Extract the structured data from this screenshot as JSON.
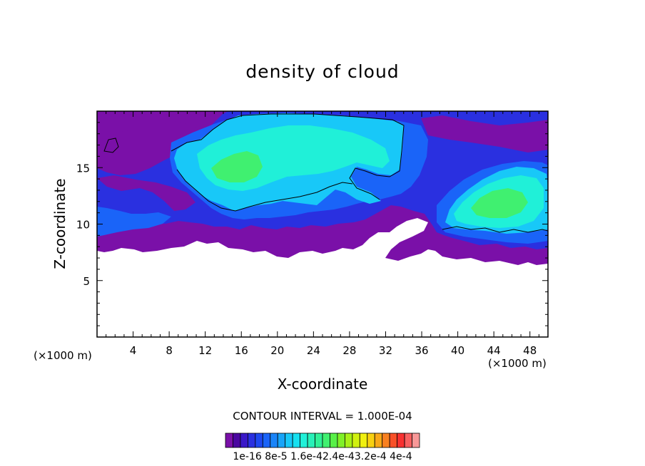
{
  "chart_data": {
    "type": "heatmap",
    "title": "density of cloud",
    "xlabel": "X-coordinate",
    "ylabel": "Z-coordinate",
    "x_unit_label": "(×1000 m)",
    "xlim": [
      0,
      50
    ],
    "ylim": [
      0,
      20
    ],
    "x_ticks": [
      4,
      8,
      12,
      16,
      20,
      24,
      28,
      32,
      36,
      40,
      44,
      48
    ],
    "y_ticks": [
      5,
      10,
      15
    ],
    "contour_interval_text": "CONTOUR INTERVAL = 1.000E-04",
    "colorbar_labels": "1e-16 8e-5 1.6e-42.4e-43.2e-4 4e-4",
    "colorbar_colors": [
      "#7a10a8",
      "#4a06a0",
      "#3a18c8",
      "#2a30e0",
      "#1e48f0",
      "#1a64f8",
      "#1a84f8",
      "#18a4f8",
      "#18c8f8",
      "#16e0f0",
      "#20f0d8",
      "#28f0b8",
      "#30f098",
      "#40f070",
      "#58f048",
      "#80f028",
      "#a8f018",
      "#d0f010",
      "#f0f010",
      "#f8d010",
      "#f8a818",
      "#f88020",
      "#f85028",
      "#f83030",
      "#f86060",
      "#f89898"
    ],
    "regions": [
      {
        "name": "purple-fringe",
        "color": "#7a10a8",
        "value": 1e-16
      },
      {
        "name": "dark-blue-layer",
        "color": "#2a30e0",
        "value": 4e-05
      },
      {
        "name": "blue-layer",
        "color": "#1a64f8",
        "value": 8e-05
      },
      {
        "name": "cyan-core",
        "color": "#18c8f8",
        "value": 0.00012
      },
      {
        "name": "aqua-core",
        "color": "#20f0d8",
        "value": 0.00016
      },
      {
        "name": "green-core",
        "color": "#40f070",
        "value": 0.0002
      }
    ]
  }
}
